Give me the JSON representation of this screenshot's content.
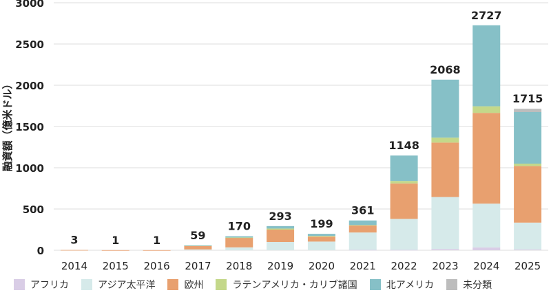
{
  "chart_data": {
    "type": "bar",
    "stacked": true,
    "ylabel": "融資額（億米ドル）",
    "ylim": [
      0,
      3000
    ],
    "yticks": [
      0,
      500,
      1000,
      1500,
      2000,
      2500,
      3000
    ],
    "grid": true,
    "legend_position": "bottom",
    "categories": [
      "2014",
      "2015",
      "2016",
      "2017",
      "2018",
      "2019",
      "2020",
      "2021",
      "2022",
      "2023",
      "2024",
      "2025"
    ],
    "totals": [
      3,
      1,
      1,
      59,
      170,
      293,
      199,
      361,
      1148,
      2068,
      2727,
      1715
    ],
    "series": [
      {
        "name": "アフリカ",
        "color": "#d9cde6",
        "values": [
          0,
          0,
          0,
          0,
          0,
          0,
          0,
          5,
          5,
          15,
          35,
          10
        ]
      },
      {
        "name": "アジア太平洋",
        "color": "#d6eaea",
        "values": [
          0,
          0,
          0,
          10,
          35,
          100,
          105,
          210,
          375,
          630,
          530,
          325
        ]
      },
      {
        "name": "欧州",
        "color": "#e8a06f",
        "values": [
          3,
          1,
          1,
          45,
          115,
          150,
          60,
          85,
          430,
          660,
          1100,
          685
        ]
      },
      {
        "name": "ラテンアメリカ・カリブ諸国",
        "color": "#c4d88a",
        "values": [
          0,
          0,
          0,
          2,
          5,
          13,
          9,
          6,
          30,
          60,
          80,
          30
        ]
      },
      {
        "name": "北アメリカ",
        "color": "#86c0c7",
        "values": [
          0,
          0,
          0,
          2,
          15,
          30,
          25,
          55,
          308,
          703,
          982,
          625
        ]
      },
      {
        "name": "未分類",
        "color": "#bdbdbd",
        "values": [
          0,
          0,
          0,
          0,
          0,
          0,
          0,
          0,
          0,
          0,
          0,
          40
        ]
      }
    ]
  }
}
